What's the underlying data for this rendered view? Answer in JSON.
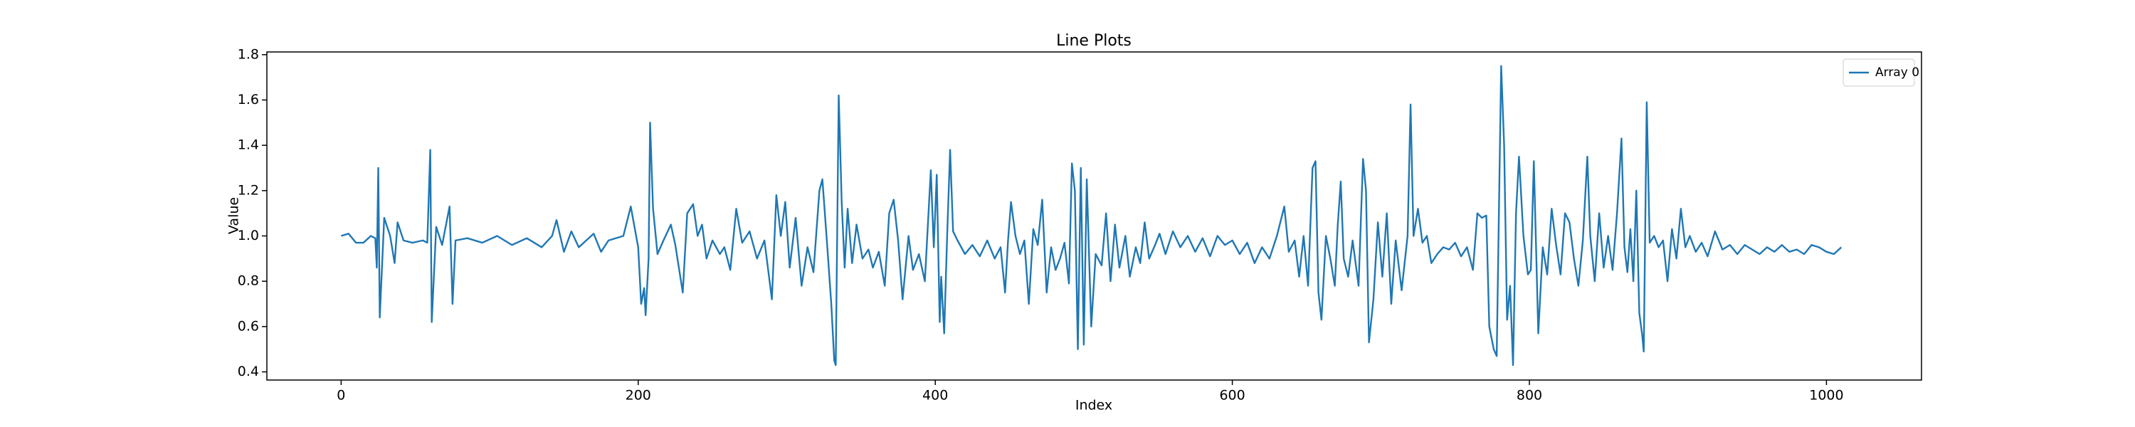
{
  "chart_data": {
    "type": "line",
    "title": "Line Plots",
    "x_label": "Index",
    "y_label": "Value",
    "x": [
      0,
      5,
      10,
      15,
      20,
      23,
      24,
      25,
      26,
      29,
      33,
      36,
      38,
      42,
      48,
      55,
      58,
      60,
      61,
      64,
      68,
      73,
      75,
      77,
      85,
      95,
      105,
      115,
      125,
      135,
      142,
      145,
      150,
      155,
      160,
      165,
      170,
      175,
      180,
      190,
      195,
      200,
      202,
      204,
      205,
      207,
      208,
      210,
      213,
      217,
      222,
      225,
      230,
      233,
      237,
      240,
      243,
      246,
      250,
      255,
      258,
      262,
      266,
      270,
      275,
      280,
      285,
      290,
      293,
      296,
      299,
      302,
      306,
      310,
      314,
      318,
      322,
      324,
      327,
      330,
      332,
      333,
      335,
      337,
      339,
      341,
      344,
      347,
      351,
      355,
      358,
      362,
      366,
      369,
      372,
      375,
      378,
      382,
      385,
      389,
      393,
      397,
      399,
      401,
      403,
      404,
      406,
      408,
      410,
      412,
      415,
      420,
      425,
      430,
      435,
      440,
      444,
      447,
      449,
      451,
      454,
      457,
      460,
      463,
      466,
      469,
      472,
      475,
      478,
      481,
      484,
      487,
      490,
      492,
      494,
      496,
      498,
      500,
      502,
      505,
      508,
      512,
      515,
      518,
      521,
      524,
      528,
      531,
      535,
      538,
      541,
      544,
      548,
      551,
      555,
      560,
      565,
      570,
      575,
      580,
      585,
      590,
      595,
      600,
      605,
      610,
      615,
      620,
      625,
      630,
      635,
      638,
      642,
      645,
      648,
      651,
      654,
      656,
      658,
      660,
      663,
      666,
      669,
      671,
      673,
      675,
      678,
      681,
      685,
      688,
      690,
      692,
      695,
      698,
      701,
      704,
      707,
      710,
      714,
      718,
      720,
      722,
      725,
      728,
      731,
      734,
      738,
      742,
      746,
      750,
      754,
      758,
      762,
      765,
      768,
      771,
      773,
      776,
      778,
      781,
      783,
      785,
      787,
      789,
      791,
      793,
      796,
      799,
      801,
      803,
      806,
      809,
      812,
      815,
      818,
      821,
      824,
      827,
      830,
      833,
      836,
      839,
      841,
      844,
      847,
      850,
      853,
      856,
      859,
      862,
      864,
      866,
      868,
      870,
      872,
      874,
      876,
      877,
      879,
      881,
      884,
      887,
      890,
      893,
      896,
      899,
      902,
      905,
      908,
      912,
      916,
      920,
      925,
      930,
      935,
      940,
      945,
      950,
      955,
      960,
      965,
      970,
      975,
      980,
      985,
      990,
      995,
      1000,
      1005,
      1010
    ],
    "series": [
      {
        "name": "Array 0",
        "color": "#1f77b4",
        "values": [
          1.0,
          1.01,
          0.97,
          0.97,
          1.0,
          0.99,
          0.86,
          1.3,
          0.64,
          1.08,
          1.0,
          0.88,
          1.06,
          0.98,
          0.97,
          0.98,
          0.97,
          1.38,
          0.62,
          1.04,
          0.96,
          1.13,
          0.7,
          0.98,
          0.99,
          0.97,
          1.0,
          0.96,
          0.99,
          0.95,
          1.0,
          1.07,
          0.93,
          1.02,
          0.95,
          0.98,
          1.01,
          0.93,
          0.98,
          1.0,
          1.13,
          0.95,
          0.7,
          0.77,
          0.65,
          0.9,
          1.5,
          1.12,
          0.92,
          0.98,
          1.05,
          0.96,
          0.75,
          1.1,
          1.14,
          1.0,
          1.05,
          0.9,
          0.98,
          0.92,
          0.95,
          0.85,
          1.12,
          0.97,
          1.02,
          0.9,
          0.98,
          0.72,
          1.18,
          1.0,
          1.15,
          0.86,
          1.08,
          0.78,
          0.95,
          0.84,
          1.2,
          1.25,
          0.98,
          0.7,
          0.45,
          0.43,
          1.62,
          1.15,
          0.86,
          1.12,
          0.88,
          1.05,
          0.9,
          0.94,
          0.86,
          0.93,
          0.78,
          1.1,
          1.16,
          0.98,
          0.72,
          1.0,
          0.85,
          0.92,
          0.8,
          1.29,
          0.95,
          1.27,
          0.62,
          0.82,
          0.57,
          1.0,
          1.38,
          1.02,
          0.98,
          0.92,
          0.96,
          0.91,
          0.98,
          0.9,
          0.95,
          0.75,
          0.98,
          1.15,
          1.0,
          0.92,
          0.98,
          0.7,
          1.03,
          0.96,
          1.16,
          0.75,
          0.95,
          0.85,
          0.9,
          0.97,
          0.79,
          1.32,
          1.2,
          0.5,
          1.3,
          0.52,
          1.25,
          0.6,
          0.92,
          0.87,
          1.1,
          0.8,
          1.05,
          0.86,
          1.0,
          0.82,
          0.95,
          0.88,
          1.06,
          0.9,
          0.96,
          1.01,
          0.92,
          1.02,
          0.95,
          1.0,
          0.93,
          0.99,
          0.91,
          1.0,
          0.96,
          0.98,
          0.92,
          0.97,
          0.88,
          0.95,
          0.9,
          1.0,
          1.13,
          0.93,
          0.98,
          0.82,
          1.0,
          0.78,
          1.3,
          1.33,
          0.75,
          0.63,
          1.0,
          0.9,
          0.78,
          1.05,
          1.24,
          0.9,
          0.82,
          0.98,
          0.78,
          1.34,
          1.2,
          0.53,
          0.72,
          1.06,
          0.82,
          1.1,
          0.7,
          0.98,
          0.76,
          1.0,
          1.58,
          1.0,
          1.12,
          0.97,
          1.0,
          0.88,
          0.92,
          0.95,
          0.94,
          0.97,
          0.91,
          0.95,
          0.85,
          1.1,
          1.08,
          1.09,
          0.6,
          0.5,
          0.47,
          1.75,
          1.4,
          0.63,
          0.78,
          0.43,
          1.1,
          1.35,
          1.0,
          0.83,
          0.85,
          1.33,
          0.57,
          0.95,
          0.83,
          1.12,
          0.96,
          0.83,
          1.1,
          1.06,
          0.9,
          0.78,
          0.98,
          1.35,
          1.0,
          0.8,
          1.1,
          0.86,
          1.0,
          0.85,
          1.1,
          1.43,
          0.95,
          0.84,
          1.03,
          0.8,
          1.2,
          0.66,
          0.56,
          0.49,
          1.59,
          0.97,
          1.0,
          0.95,
          0.98,
          0.8,
          1.03,
          0.9,
          1.12,
          0.95,
          1.0,
          0.93,
          0.97,
          0.91,
          1.02,
          0.94,
          0.96,
          0.92,
          0.96,
          0.94,
          0.92,
          0.95,
          0.93,
          0.96,
          0.93,
          0.94,
          0.92,
          0.96,
          0.95,
          0.93,
          0.92,
          0.95
        ]
      }
    ],
    "xlim": [
      -50,
      1064
    ],
    "xticks": [
      0,
      200,
      400,
      600,
      800,
      1000
    ],
    "ylim": [
      0.364,
      1.812
    ],
    "yticks": [
      0.4,
      0.6,
      0.8,
      {
        "value": 1,
        "label": "1.0"
      },
      1.2,
      1.4,
      1.6,
      1.8
    ],
    "legend": "upper right",
    "grid": false
  }
}
